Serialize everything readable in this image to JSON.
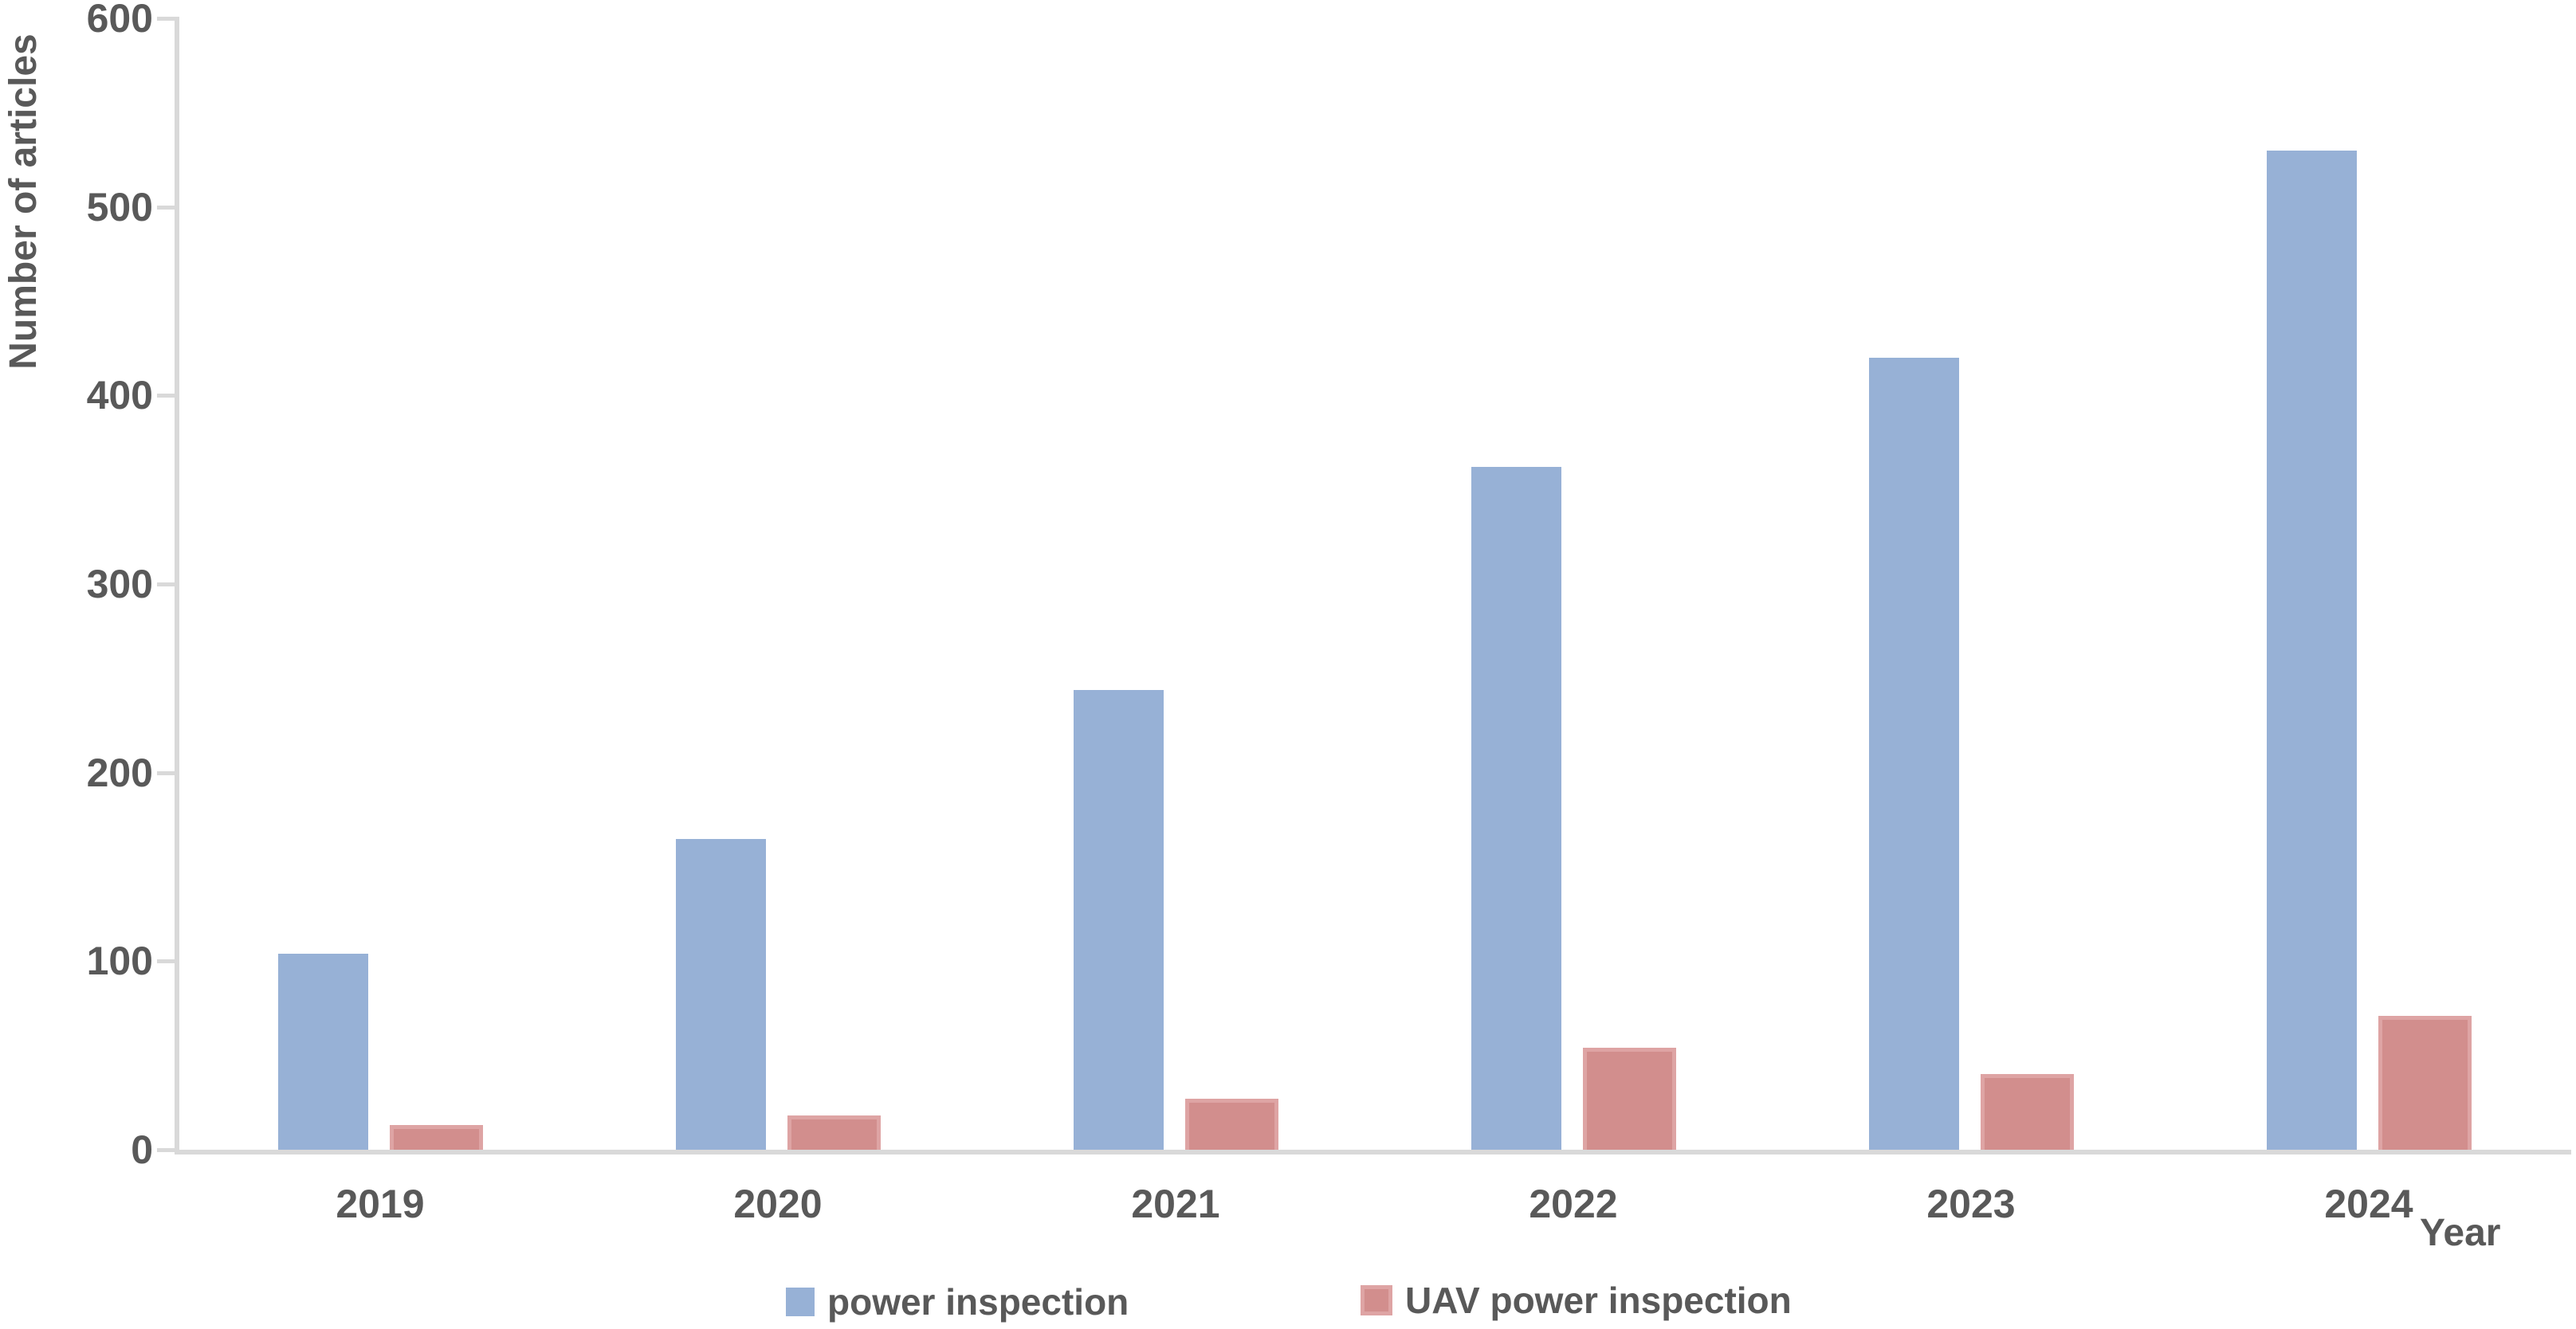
{
  "chart_data": {
    "type": "bar",
    "title": "",
    "xlabel": "Year",
    "ylabel": "Number of articles",
    "categories": [
      "2019",
      "2020",
      "2021",
      "2022",
      "2023",
      "2024"
    ],
    "series": [
      {
        "name": "power inspection",
        "color": "#97B1D6",
        "values": [
          104,
          165,
          244,
          362,
          420,
          530
        ]
      },
      {
        "name": "UAV power inspection",
        "color": "#D28E8D",
        "border_color": "#DEA4A4",
        "values": [
          13,
          18,
          27,
          54,
          40,
          71
        ]
      }
    ],
    "ylim": [
      0,
      600
    ],
    "ytick_step": 100,
    "yticks": [
      "0",
      "100",
      "200",
      "300",
      "400",
      "500",
      "600"
    ],
    "grid": "off",
    "legend_position": "bottom",
    "axis_color": "#D9D9D9",
    "text_color": "#595959",
    "background_color": "#FFFFFF"
  }
}
